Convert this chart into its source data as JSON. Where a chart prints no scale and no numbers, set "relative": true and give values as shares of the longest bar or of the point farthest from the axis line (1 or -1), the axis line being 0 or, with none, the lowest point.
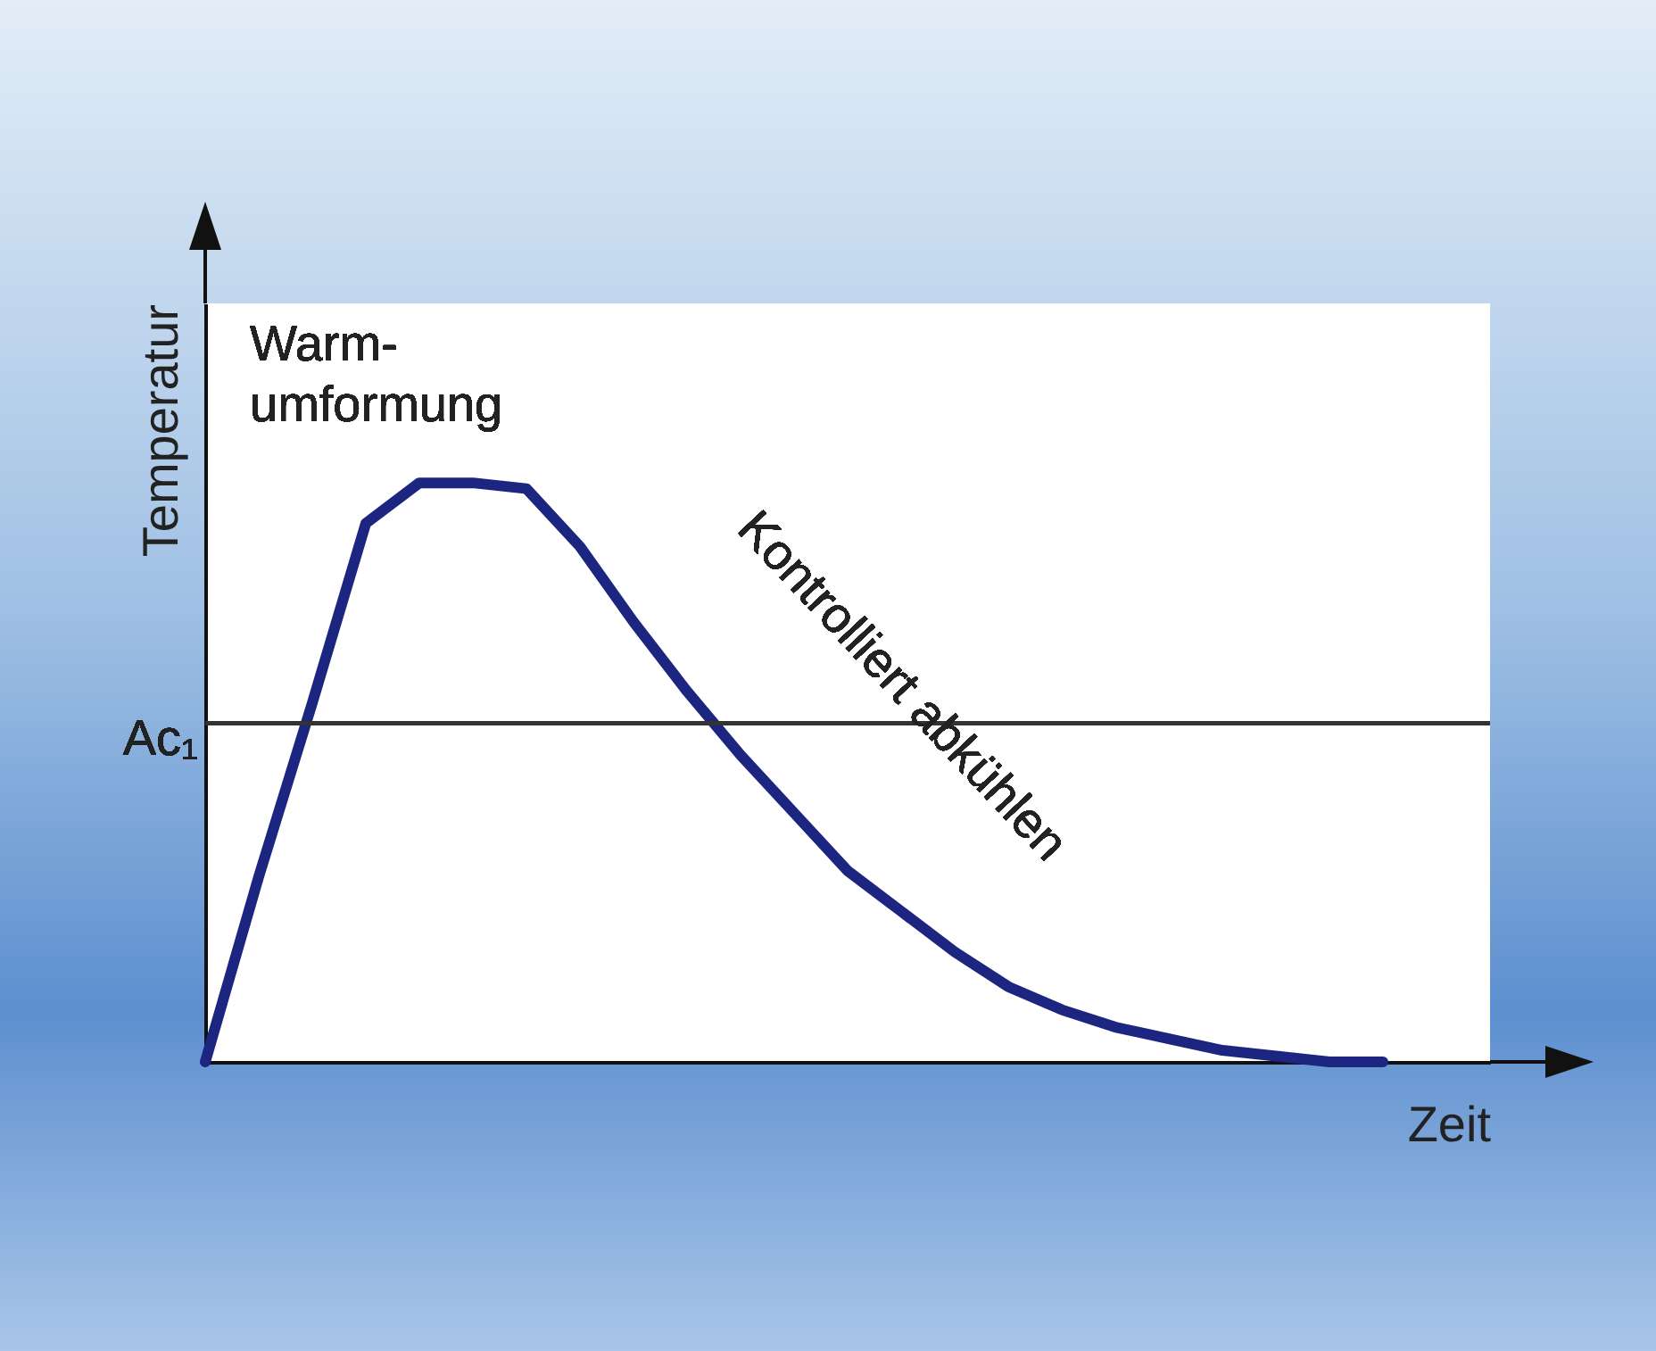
{
  "chart_data": {
    "type": "line",
    "relative": true,
    "xlabel": "Zeit",
    "ylabel": "Temperatur",
    "categories": [
      null,
      null,
      null,
      null,
      null,
      null,
      null,
      null,
      null,
      null,
      null,
      null,
      null,
      null,
      null,
      null,
      null,
      null,
      null,
      null,
      null,
      null,
      null
    ],
    "series": [
      {
        "color": "#1c2580",
        "values": [
          0,
          0.32,
          0.62,
          0.93,
          1.0,
          1.0,
          0.99,
          0.89,
          0.76,
          0.64,
          0.53,
          0.43,
          0.33,
          0.26,
          0.19,
          0.13,
          0.09,
          0.06,
          0.04,
          0.02,
          0.01,
          0,
          0
        ]
      }
    ],
    "ref_lines": [
      {
        "axis": "y",
        "value": 0.585,
        "label": "Ac₁",
        "color": "#333333"
      }
    ],
    "annotations": [
      "Warm-\numformung",
      "Kontrolliert abkühlen"
    ],
    "grid": false,
    "legend": false,
    "marker": "none",
    "line_style": "solid"
  }
}
